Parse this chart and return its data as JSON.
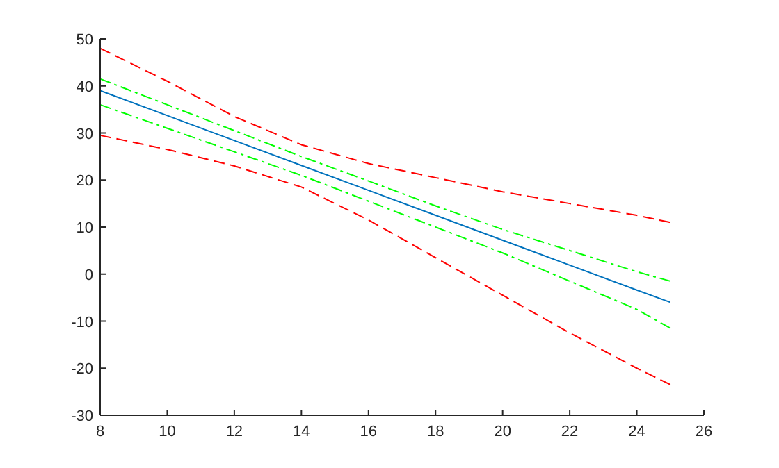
{
  "chart_data": {
    "type": "line",
    "x": [
      8,
      10,
      12,
      14,
      16,
      18,
      20,
      22,
      24,
      25
    ],
    "xlim": [
      8,
      26
    ],
    "xticks": [
      8,
      10,
      12,
      14,
      16,
      18,
      20,
      22,
      24,
      26
    ],
    "ylim": [
      -30,
      50
    ],
    "yticks": [
      -30,
      -20,
      -10,
      0,
      10,
      20,
      30,
      40,
      50
    ],
    "grid": false,
    "marker": "none",
    "series": [
      {
        "color": "#0072bd",
        "line_style": "solid",
        "values": [
          39,
          33.7,
          28.4,
          23.1,
          17.8,
          12.5,
          7.2,
          1.9,
          -3.4,
          -6
        ]
      },
      {
        "color": "#ff0000",
        "line_style": "dashed",
        "values": [
          48,
          41,
          33.5,
          27.5,
          23.5,
          20.5,
          17.5,
          15,
          12.5,
          11
        ]
      },
      {
        "color": "#ff0000",
        "line_style": "dashed",
        "values": [
          29.5,
          26.5,
          23,
          18.5,
          11.5,
          3.5,
          -4.5,
          -12.5,
          -20,
          -23.5
        ]
      },
      {
        "color": "#00ff00",
        "line_style": "dashdot",
        "values": [
          41.5,
          36,
          30.5,
          25,
          19.8,
          14.5,
          9.5,
          5,
          0.5,
          -1.5
        ]
      },
      {
        "color": "#00ff00",
        "line_style": "dashdot",
        "values": [
          36,
          31,
          26,
          21,
          15.5,
          10,
          4.5,
          -1.5,
          -7.5,
          -11.5
        ]
      }
    ]
  }
}
